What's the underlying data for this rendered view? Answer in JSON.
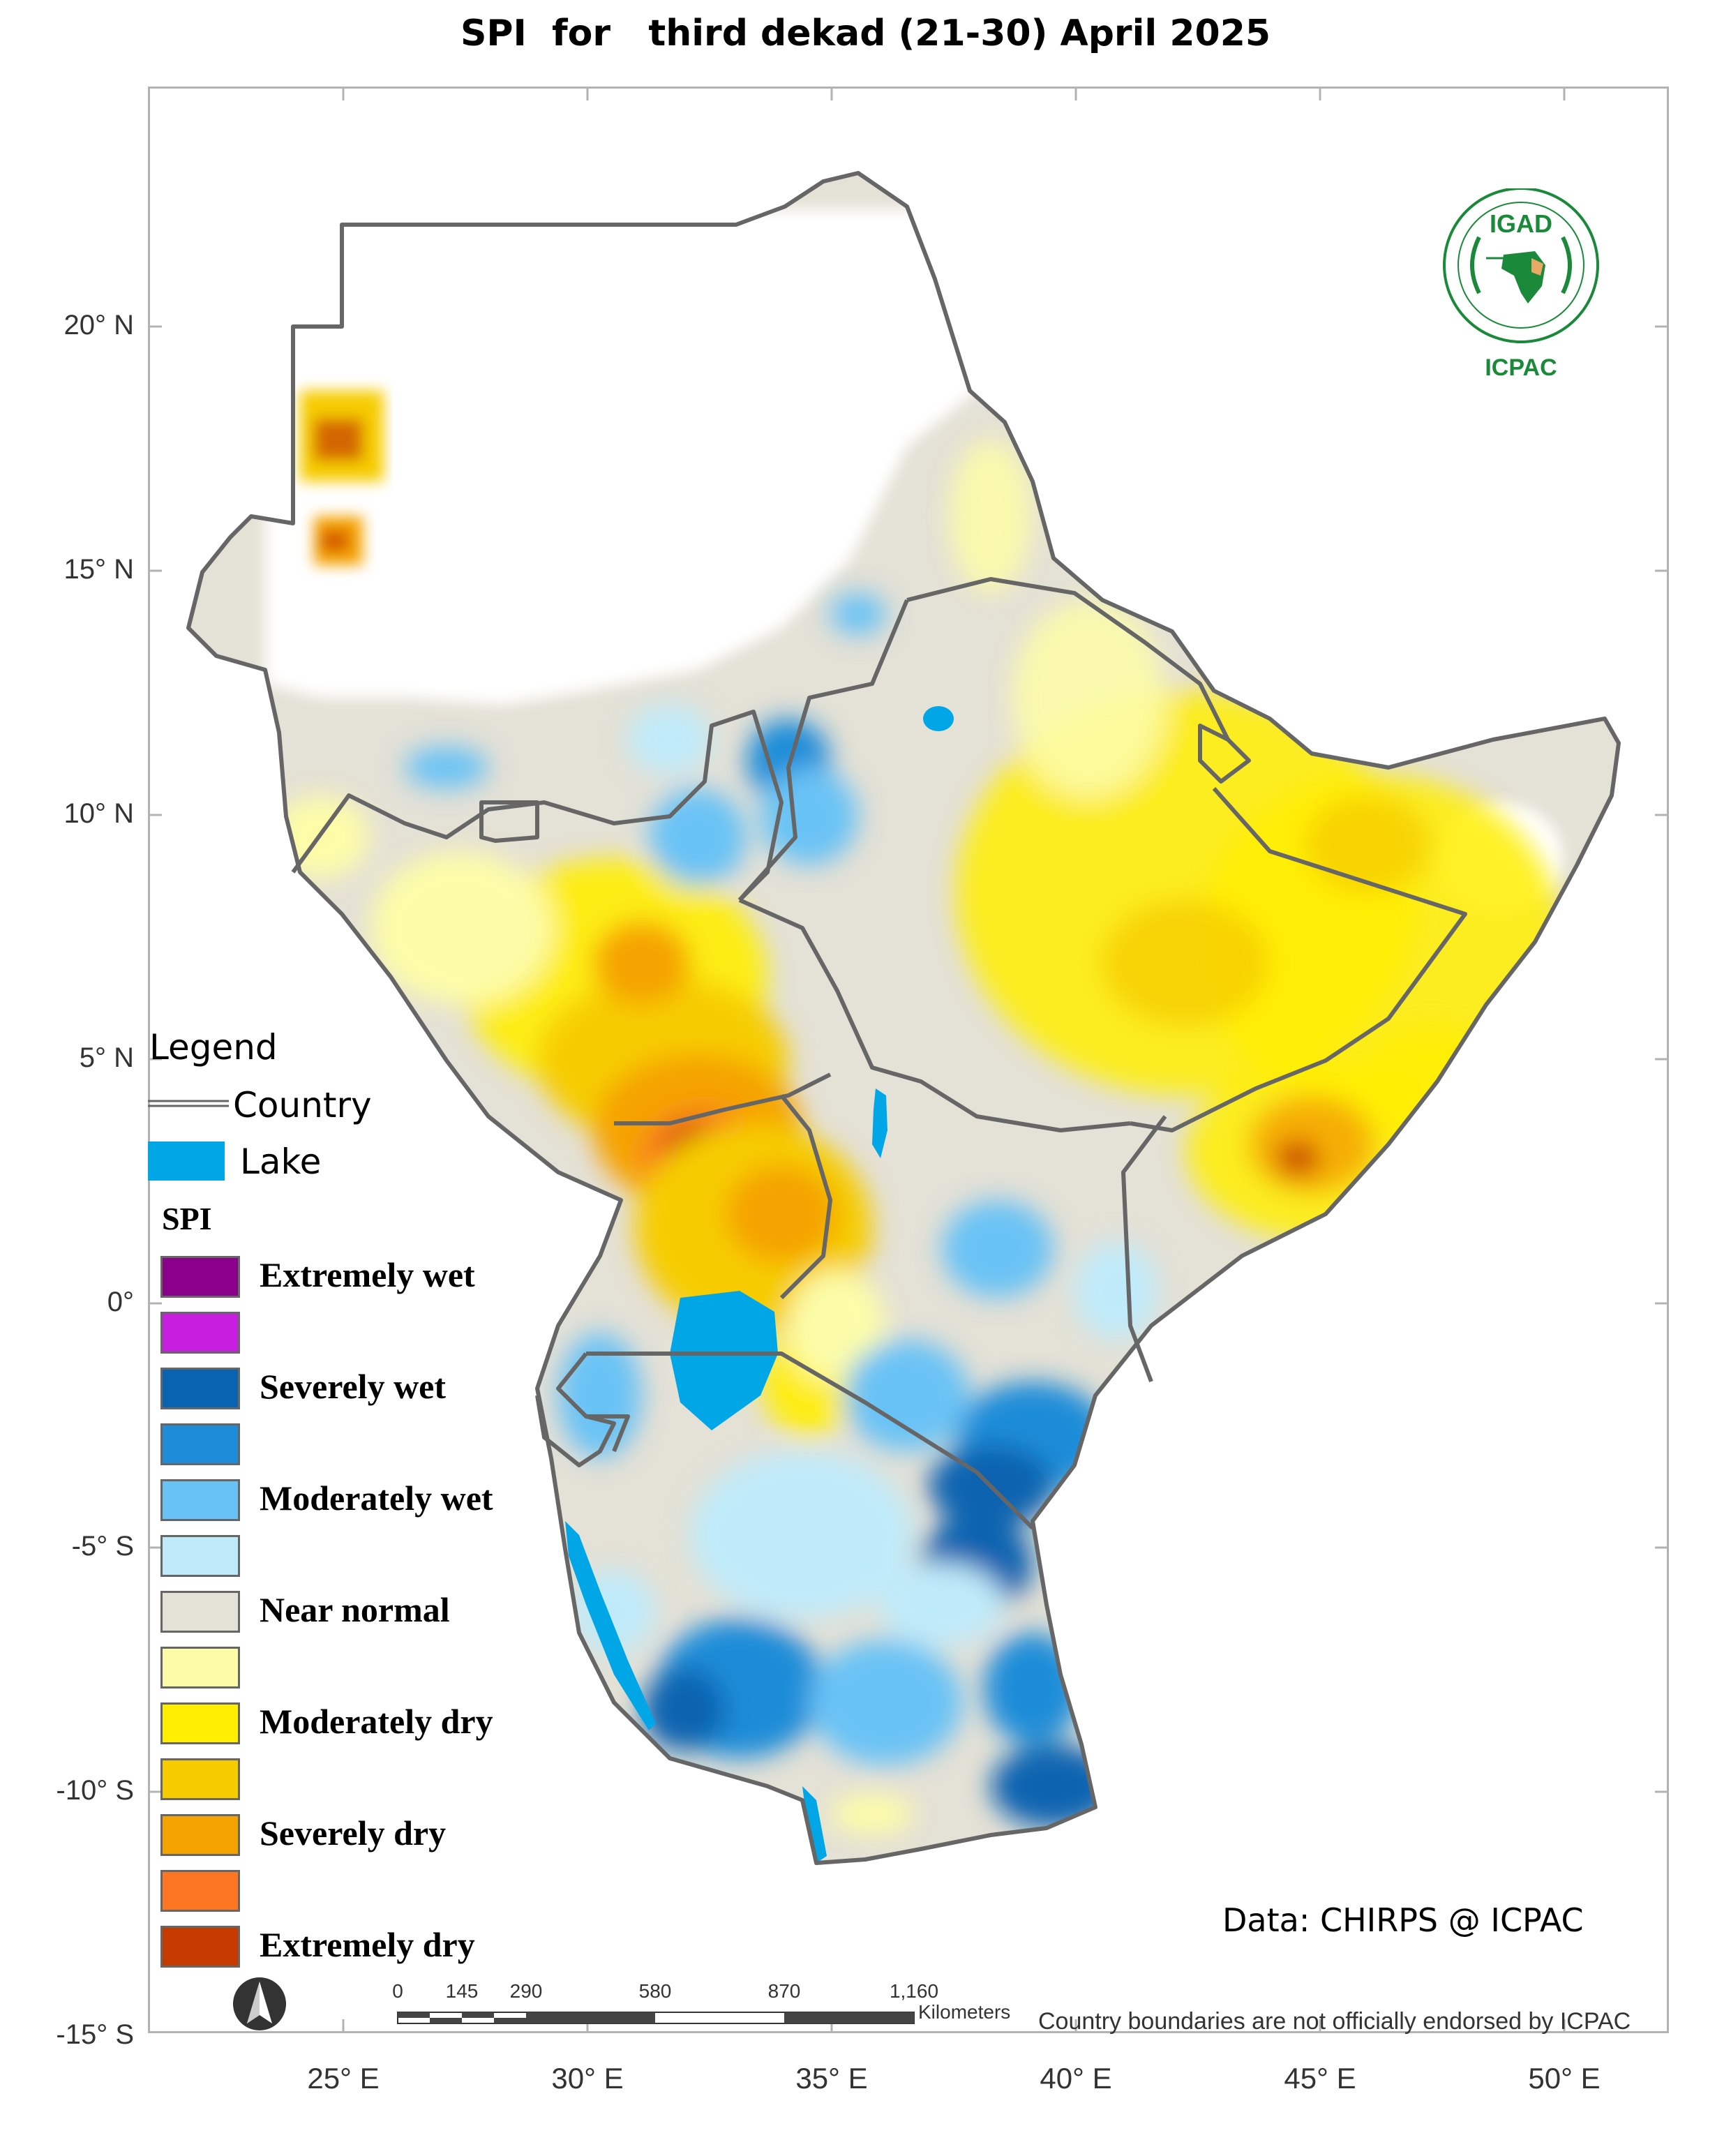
{
  "title": "SPI  for   third dekad (21-30) April 2025",
  "lat_labels": [
    "20° N",
    "15° N",
    "10° N",
    "5° N",
    "0°",
    "-5° S",
    "-10° S",
    "-15° S"
  ],
  "lon_labels": [
    "25° E",
    "30° E",
    "35° E",
    "40° E",
    "45° E",
    "50° E"
  ],
  "legend": {
    "title": "Legend",
    "country_label": "Country",
    "lake_label": "Lake",
    "lake_color": "#00a6e6",
    "spi_title": "SPI",
    "classes": [
      {
        "label": "Extremely wet",
        "color": "#8b008b"
      },
      {
        "label": "",
        "color": "#c71ee0"
      },
      {
        "label": "Severely wet",
        "color": "#0a63b0"
      },
      {
        "label": "",
        "color": "#1e8cd8"
      },
      {
        "label": "Moderately wet",
        "color": "#69c2f5"
      },
      {
        "label": "",
        "color": "#bfeaf9"
      },
      {
        "label": "Near normal",
        "color": "#e4e1d6"
      },
      {
        "label": "",
        "color": "#fcfca8"
      },
      {
        "label": "Moderately dry",
        "color": "#ffee00"
      },
      {
        "label": "",
        "color": "#f6cc00"
      },
      {
        "label": "Severely dry",
        "color": "#f5a300"
      },
      {
        "label": "",
        "color": "#fd7622"
      },
      {
        "label": "Extremely dry",
        "color": "#c63a00"
      }
    ]
  },
  "credit": "Data: CHIRPS @ ICPAC",
  "disclaimer": "Country boundaries are not officially endorsed by ICPAC",
  "scale_bar": {
    "labels": [
      "0",
      "145",
      "290",
      "580",
      "870",
      "1,160"
    ],
    "unit": "Kilometers"
  },
  "logo": {
    "top_text": "IGAD",
    "bottom_text": "ICPAC"
  },
  "north_arrow": "north-arrow-icon",
  "map_colors": {
    "border": "#666666",
    "lake": "#00a6e6",
    "near_normal": "#e4e1d6"
  }
}
